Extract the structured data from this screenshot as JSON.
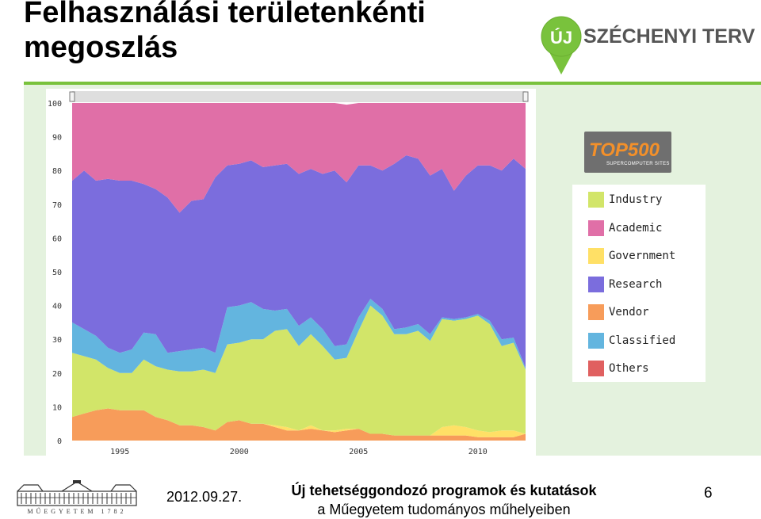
{
  "slide": {
    "title": "Felhasználási területenkénti megoszlás",
    "footer_date": "2012.09.27.",
    "footer_line1": "Új tehetséggondozó programok és kutatások",
    "footer_line2": "a Műegyetem tudományos műhelyeiben",
    "page_number": "6",
    "university_caption": "MŰEGYETEM 1782"
  },
  "logos": {
    "szechenyi_badge": "ÚJ",
    "szechenyi_text": "SZÉCHENYI TERV",
    "top500_text": "TOP500",
    "top500_sub": "SUPERCOMPUTER SITES"
  },
  "colors": {
    "accent_green": "#79c23c",
    "panel_bg": "#e4f2de"
  },
  "chart_data": {
    "type": "area",
    "stacked": true,
    "x_tick_labels": [
      "1995",
      "2000",
      "2005",
      "2010"
    ],
    "y_ticks": [
      0,
      10,
      20,
      30,
      40,
      50,
      60,
      70,
      80,
      90,
      100
    ],
    "ylim": [
      0,
      100
    ],
    "xlim": [
      1993.0,
      2012.0
    ],
    "grid": false,
    "legend_position": "right",
    "x": [
      1993.0,
      1993.5,
      1994.0,
      1994.5,
      1995.0,
      1995.5,
      1996.0,
      1996.5,
      1997.0,
      1997.5,
      1998.0,
      1998.5,
      1999.0,
      1999.5,
      2000.0,
      2000.5,
      2001.0,
      2001.5,
      2002.0,
      2002.5,
      2003.0,
      2003.5,
      2004.0,
      2004.5,
      2005.0,
      2005.5,
      2006.0,
      2006.5,
      2007.0,
      2007.5,
      2008.0,
      2008.5,
      2009.0,
      2009.5,
      2010.0,
      2010.5,
      2011.0,
      2011.5,
      2012.0
    ],
    "series": [
      {
        "name": "Vendor",
        "color": "#f79c5a",
        "values": [
          7,
          8,
          9,
          9.5,
          9,
          9,
          9,
          7,
          6,
          4.5,
          4.5,
          4,
          3,
          5.5,
          6,
          5,
          5,
          4,
          3,
          3,
          3.5,
          3,
          2.5,
          3,
          3.5,
          2,
          2,
          1.5,
          1.5,
          1.5,
          1.5,
          1.5,
          1.5,
          1.5,
          1,
          1,
          1,
          1,
          2
        ]
      },
      {
        "name": "Government",
        "color": "#ffe066",
        "values": [
          0,
          0,
          0,
          0,
          0,
          0,
          0,
          0,
          0,
          0,
          0,
          0,
          0,
          0,
          0,
          0,
          0,
          0.5,
          1,
          0,
          1,
          0,
          0.5,
          0.5,
          0,
          0,
          0,
          0,
          0,
          0,
          0,
          2.5,
          3,
          2.5,
          2,
          1.5,
          2,
          2,
          0
        ]
      },
      {
        "name": "Industry",
        "color": "#d2e569",
        "values": [
          19,
          17,
          15,
          12,
          11,
          11,
          15,
          15,
          15,
          16,
          16,
          17,
          17,
          23,
          23,
          25,
          25,
          28,
          29,
          25,
          27,
          25,
          21,
          21,
          29,
          38,
          35,
          30,
          30,
          31,
          28,
          32,
          31,
          32,
          34,
          32,
          25,
          26,
          19
        ]
      },
      {
        "name": "Classified",
        "color": "#63b5df",
        "values": [
          9,
          8,
          7,
          6,
          6,
          7,
          8,
          9.5,
          5,
          6,
          6.5,
          6.5,
          6,
          11,
          11,
          11,
          9,
          6,
          6,
          6,
          5,
          5,
          4,
          4,
          4,
          2,
          2,
          1.5,
          2,
          2,
          2,
          0.5,
          0.5,
          0.5,
          0.5,
          1,
          2,
          1.5,
          0.5
        ]
      },
      {
        "name": "Research",
        "color": "#7b6ddd",
        "values": [
          42,
          47,
          46,
          50,
          51,
          50,
          44,
          43,
          46,
          41,
          44,
          44,
          52,
          42,
          42,
          42,
          42,
          43,
          43,
          45,
          44,
          46,
          52,
          48,
          45,
          39.5,
          41,
          49,
          51,
          49,
          47,
          44,
          38,
          42,
          44,
          46,
          50,
          53,
          59
        ]
      },
      {
        "name": "Academic",
        "color": "#e06fa7",
        "values": [
          23,
          20,
          23,
          22.5,
          23,
          23,
          24,
          25.5,
          28,
          32.5,
          29,
          28.5,
          22,
          18.5,
          18,
          17,
          19,
          18.5,
          18,
          21,
          19.5,
          21,
          20,
          23,
          18.5,
          18.5,
          20,
          18,
          15.5,
          16.5,
          21.5,
          19.5,
          26,
          21.5,
          18.5,
          18.5,
          20,
          16.5,
          19.5
        ]
      },
      {
        "name": "Others",
        "color": "#e06060",
        "values": [
          0,
          0,
          0,
          0,
          0,
          0,
          0,
          0,
          0,
          0,
          0,
          0,
          0,
          0,
          0,
          0,
          0,
          0,
          0,
          0,
          0,
          0,
          0,
          0,
          0,
          0,
          0,
          0,
          0,
          0,
          0,
          0,
          0,
          0,
          0,
          0,
          0,
          0,
          0
        ]
      }
    ],
    "legend_order": [
      "Industry",
      "Academic",
      "Government",
      "Research",
      "Vendor",
      "Classified",
      "Others"
    ]
  }
}
